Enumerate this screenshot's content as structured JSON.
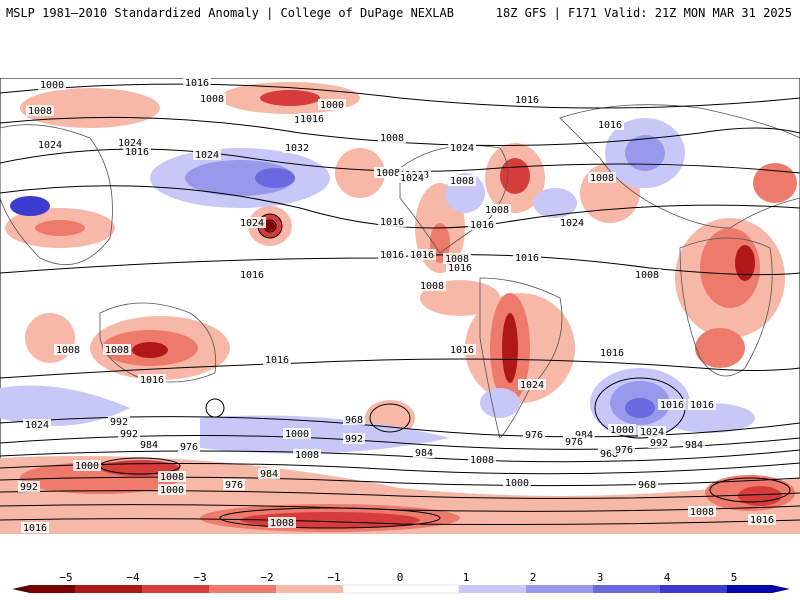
{
  "header": {
    "title": "MSLP 1981–2010 Standardized Anomaly | College of DuPage NEXLAB",
    "run_info": "18Z GFS | F171 Valid: 21Z MON MAR 31 2025"
  },
  "map": {
    "isobar_labels": [
      "1000",
      "1008",
      "1008",
      "1000",
      "1016",
      "1024",
      "1024",
      "1016",
      "1008",
      "1016",
      "1024",
      "1032",
      "1008",
      "1008",
      "1016",
      "1016",
      "1024",
      "1024",
      "1016",
      "1016",
      "1024",
      "1016",
      "1008",
      "1008",
      "1024",
      "1016",
      "1008",
      "1008",
      "1016",
      "1016",
      "1008",
      "1016",
      "1016",
      "1008",
      "1008",
      "1008",
      "1016",
      "1016",
      "1016",
      "1024",
      "1016",
      "1024",
      "1016",
      "1000",
      "1016",
      "1024",
      "992",
      "1000",
      "992",
      "984",
      "976",
      "1000",
      "1008",
      "968",
      "992",
      "984",
      "1008",
      "1000",
      "984",
      "976",
      "976",
      "968",
      "992",
      "976",
      "968",
      "984",
      "992",
      "1000",
      "1008",
      "976",
      "984",
      "1008",
      "1016",
      "1008",
      "1016"
    ],
    "colors": {
      "neg5": "#7a0000",
      "neg4": "#b01818",
      "neg3": "#d63c3c",
      "neg2": "#ee7a6c",
      "neg1": "#f8b8a8",
      "pos1": "#c8c8f8",
      "pos2": "#9898ec",
      "pos3": "#6a6ae0",
      "pos4": "#3c3cd0",
      "pos5": "#0808b0",
      "land_outline": "#555555",
      "isobar": "#000000"
    }
  },
  "colorbar": {
    "ticks": [
      "−5",
      "−4",
      "−3",
      "−2",
      "−1",
      "0",
      "1",
      "2",
      "3",
      "4",
      "5"
    ]
  }
}
